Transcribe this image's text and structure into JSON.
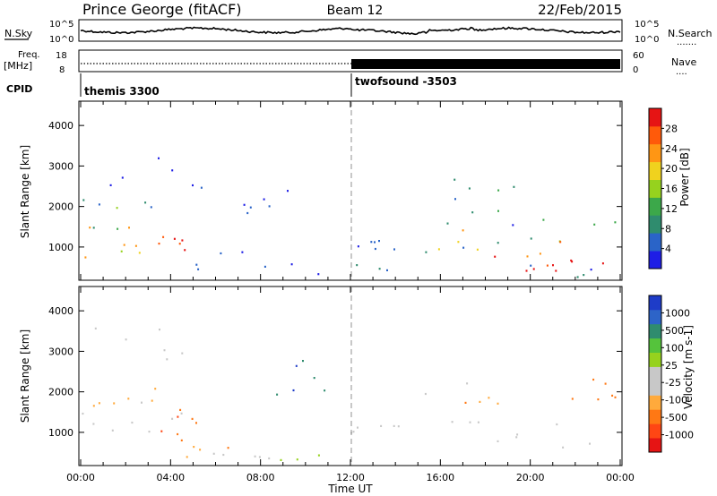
{
  "header": {
    "radar": "Prince George (fitACF)",
    "beam": "Beam 12",
    "date": "22/Feb/2015"
  },
  "strip": {
    "nsky_label": "N.Sky",
    "nsearch_label": "N.Search",
    "nsearch_dots": ".......",
    "freq_label": "Freq.",
    "freq_unit": "[MHz]",
    "nave_label": "Nave",
    "nave_dots": "....",
    "cpid_label": "CPID",
    "noise_ticks": [
      "10^5",
      "10^0"
    ],
    "freq_ticks": [
      "18",
      "8"
    ],
    "nave_ticks": [
      "60",
      "0"
    ]
  },
  "cpid": [
    {
      "start_hour": 0,
      "name": "themis 3300"
    },
    {
      "start_hour": 12,
      "name": "twofsound -3503"
    }
  ],
  "colors": {
    "power_scale": [
      "#1e1ee6",
      "#2a64c8",
      "#2f8c6e",
      "#3ca84a",
      "#96d21e",
      "#f0d21e",
      "#ff9614",
      "#ff5a0a",
      "#e61414"
    ],
    "velocity_scale": [
      "#1e3cc8",
      "#2d64c8",
      "#2f8c6e",
      "#55c33c",
      "#96d21e",
      "#c8c8c8",
      "#c8c8c8",
      "#ffaa3c",
      "#ff7814",
      "#ff4614",
      "#e61414"
    ]
  },
  "chart_data": [
    {
      "type": "heatmap",
      "title": "Power",
      "xlabel": "",
      "ylabel": "Slant Range [km]",
      "x_range_hours": [
        0,
        24
      ],
      "ylim": [
        180,
        4600
      ],
      "y_ticks": [
        "1000",
        "2000",
        "3000",
        "4000"
      ],
      "colorbar_label": "Power [dB]",
      "colorbar_ticks": [
        "28",
        "24",
        "20",
        "16",
        "12",
        "8",
        "4"
      ],
      "colorbar_range": [
        0,
        32
      ],
      "scatter_regions": [
        {
          "t": [
            0.0,
            3.6
          ],
          "r": [
            600,
            1500
          ],
          "v": 21,
          "spread": 5,
          "density": 0.9
        },
        {
          "t": [
            3.4,
            4.9
          ],
          "r": [
            750,
            1250
          ],
          "v": 29,
          "spread": 3,
          "density": 0.9
        },
        {
          "t": [
            0.0,
            3.6
          ],
          "r": [
            1400,
            2300
          ],
          "v": 9,
          "spread": 6,
          "density": 0.5
        },
        {
          "t": [
            0.3,
            5.8
          ],
          "r": [
            2400,
            3600
          ],
          "v": 3,
          "spread": 2,
          "density": 0.12
        },
        {
          "t": [
            7.2,
            9.6
          ],
          "r": [
            1800,
            2700
          ],
          "v": 3,
          "spread": 2,
          "density": 0.25
        },
        {
          "t": [
            4.5,
            12.0
          ],
          "r": [
            200,
            900
          ],
          "v": 4,
          "spread": 3,
          "density": 0.35
        },
        {
          "t": [
            12.0,
            14.2
          ],
          "r": [
            800,
            1200
          ],
          "v": 4,
          "spread": 2,
          "density": 0.45
        },
        {
          "t": [
            14.5,
            17.5
          ],
          "r": [
            800,
            1900
          ],
          "v": 14,
          "spread": 9,
          "density": 0.45
        },
        {
          "t": [
            15.8,
            19.5
          ],
          "r": [
            1800,
            2700
          ],
          "v": 11,
          "spread": 8,
          "density": 0.3
        },
        {
          "t": [
            17.5,
            24.0
          ],
          "r": [
            1100,
            2100
          ],
          "v": 9,
          "spread": 6,
          "density": 0.55
        },
        {
          "t": [
            17.5,
            24.0
          ],
          "r": [
            550,
            1200
          ],
          "v": 26,
          "spread": 5,
          "density": 0.75
        },
        {
          "t": [
            19.0,
            22.5
          ],
          "r": [
            350,
            700
          ],
          "v": 30,
          "spread": 2,
          "density": 0.7
        },
        {
          "t": [
            12.0,
            24.0
          ],
          "r": [
            200,
            600
          ],
          "v": 5,
          "spread": 4,
          "density": 0.35
        }
      ]
    },
    {
      "type": "heatmap",
      "title": "Velocity",
      "xlabel": "Time UT",
      "ylabel": "Slant Range [km]",
      "x_range_hours": [
        0,
        24
      ],
      "ylim": [
        180,
        4600
      ],
      "x_ticks": [
        "00:00",
        "04:00",
        "08:00",
        "12:00",
        "16:00",
        "20:00",
        "00:00"
      ],
      "y_ticks": [
        "1000",
        "2000",
        "3000",
        "4000"
      ],
      "colorbar_label": "Velocity [m s-1]",
      "colorbar_ticks": [
        "1000",
        "500",
        "100",
        "25",
        "-25",
        "-100",
        "-500",
        "-1000"
      ],
      "scatter_regions": [
        {
          "t": [
            0.0,
            3.5
          ],
          "r": [
            1500,
            2300
          ],
          "v": 7,
          "spread": 1,
          "density": 0.8
        },
        {
          "t": [
            0.0,
            4.5
          ],
          "r": [
            600,
            1500
          ],
          "v": 5,
          "spread": 0,
          "density": 0.75
        },
        {
          "t": [
            2.5,
            5.2
          ],
          "r": [
            600,
            1600
          ],
          "v": 8,
          "spread": 1,
          "density": 0.85
        },
        {
          "t": [
            4.5,
            7.5
          ],
          "r": [
            300,
            650
          ],
          "v": 7,
          "spread": 1,
          "density": 0.5
        },
        {
          "t": [
            7.5,
            11.5
          ],
          "r": [
            200,
            500
          ],
          "v": 4,
          "spread": 1,
          "density": 0.5
        },
        {
          "t": [
            8.5,
            11.0
          ],
          "r": [
            1800,
            2800
          ],
          "v": 1,
          "spread": 1,
          "density": 0.25
        },
        {
          "t": [
            0.5,
            5.5
          ],
          "r": [
            2500,
            3600
          ],
          "v": 5,
          "spread": 0,
          "density": 0.08
        },
        {
          "t": [
            12.0,
            14.5
          ],
          "r": [
            800,
            1200
          ],
          "v": 5,
          "spread": 0,
          "density": 0.5
        },
        {
          "t": [
            15.0,
            24.0
          ],
          "r": [
            600,
            1700
          ],
          "v": 5,
          "spread": 0,
          "density": 0.8
        },
        {
          "t": [
            15.0,
            19.0
          ],
          "r": [
            1700,
            2600
          ],
          "v": 7,
          "spread": 1,
          "density": 0.25
        },
        {
          "t": [
            21.5,
            24.0
          ],
          "r": [
            1800,
            2400
          ],
          "v": 8,
          "spread": 1,
          "density": 0.55
        }
      ]
    }
  ]
}
